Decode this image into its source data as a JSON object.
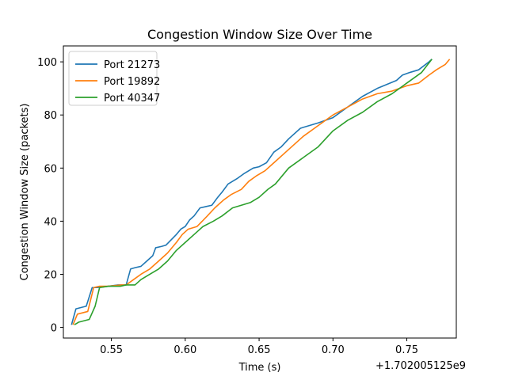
{
  "chart_data": {
    "type": "line",
    "title": "Congestion Window Size Over Time",
    "xlabel": "Time (s)",
    "ylabel": "Congestion Window Size (packets)",
    "x_offset_label": "+1.702005125e9",
    "xlim": [
      0.5175,
      0.7835
    ],
    "ylim": [
      -4,
      106
    ],
    "xticks": [
      0.55,
      0.6,
      0.65,
      0.7,
      0.75
    ],
    "xtick_labels": [
      "0.55",
      "0.60",
      "0.65",
      "0.70",
      "0.75"
    ],
    "yticks": [
      0,
      20,
      40,
      60,
      80,
      100
    ],
    "ytick_labels": [
      "0",
      "20",
      "40",
      "60",
      "80",
      "100"
    ],
    "grid": false,
    "legend_position": "upper-left",
    "series": [
      {
        "name": "Port 21273",
        "color": "#1f77b4",
        "x": [
          0.523,
          0.526,
          0.533,
          0.537,
          0.5405,
          0.548,
          0.5545,
          0.56,
          0.563,
          0.566,
          0.57,
          0.574,
          0.578,
          0.58,
          0.584,
          0.587,
          0.594,
          0.597,
          0.6,
          0.603,
          0.606,
          0.61,
          0.614,
          0.618,
          0.622,
          0.625,
          0.629,
          0.635,
          0.64,
          0.646,
          0.65,
          0.655,
          0.66,
          0.665,
          0.67,
          0.678,
          0.69,
          0.7,
          0.71,
          0.72,
          0.73,
          0.743,
          0.747,
          0.752,
          0.758,
          0.765,
          0.767
        ],
        "y": [
          1,
          7,
          8,
          15,
          15,
          15.5,
          16,
          16,
          22,
          22.5,
          23,
          25,
          27,
          30,
          30.5,
          31,
          35,
          37,
          38,
          40.5,
          42,
          45,
          45.5,
          46,
          49,
          51,
          54,
          56,
          58,
          60,
          60.5,
          62,
          66,
          68,
          71,
          75,
          77,
          79,
          83,
          87,
          90,
          93,
          95,
          96,
          97,
          100,
          101
        ]
      },
      {
        "name": "Port 19892",
        "color": "#ff7f0e",
        "x": [
          0.524,
          0.527,
          0.534,
          0.538,
          0.542,
          0.548,
          0.557,
          0.56,
          0.565,
          0.57,
          0.576,
          0.582,
          0.588,
          0.594,
          0.598,
          0.602,
          0.608,
          0.615,
          0.62,
          0.626,
          0.631,
          0.638,
          0.643,
          0.648,
          0.654,
          0.66,
          0.668,
          0.68,
          0.69,
          0.7,
          0.71,
          0.72,
          0.73,
          0.74,
          0.75,
          0.758,
          0.765,
          0.77,
          0.776,
          0.779
        ],
        "y": [
          1,
          5,
          6,
          15,
          15.5,
          15.5,
          16,
          16,
          18,
          20,
          22,
          25,
          28,
          32,
          35,
          37,
          38,
          42,
          45,
          48,
          50,
          52,
          55,
          57,
          59,
          62,
          66,
          72,
          76,
          80,
          83,
          86,
          88,
          89,
          91,
          92,
          95,
          97,
          99,
          101
        ]
      },
      {
        "name": "Port 40347",
        "color": "#2ca02c",
        "x": [
          0.525,
          0.528,
          0.535,
          0.539,
          0.542,
          0.548,
          0.556,
          0.56,
          0.566,
          0.57,
          0.576,
          0.582,
          0.588,
          0.594,
          0.6,
          0.606,
          0.612,
          0.619,
          0.625,
          0.632,
          0.638,
          0.644,
          0.65,
          0.656,
          0.661,
          0.67,
          0.68,
          0.69,
          0.7,
          0.71,
          0.72,
          0.73,
          0.74,
          0.75,
          0.76,
          0.767
        ],
        "y": [
          1,
          2,
          3,
          8,
          15,
          15.5,
          15.5,
          16,
          16,
          18,
          20,
          22,
          25,
          29,
          32,
          35,
          38,
          40,
          42,
          45,
          46,
          47,
          49,
          52,
          54,
          60,
          64,
          68,
          74,
          78,
          81,
          85,
          88,
          92,
          96,
          101
        ]
      }
    ]
  }
}
